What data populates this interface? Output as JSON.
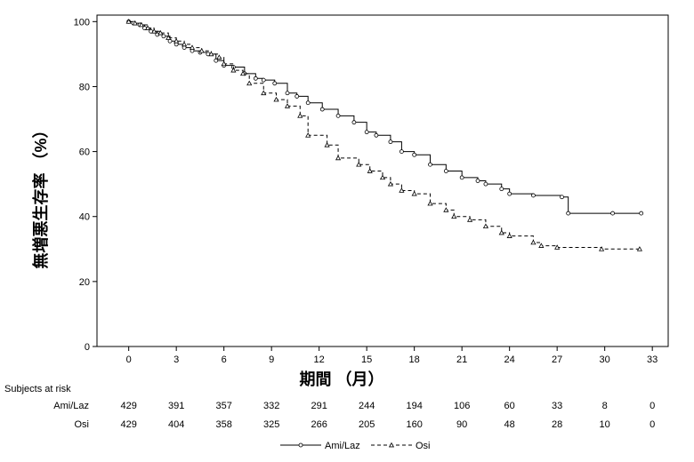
{
  "chart_data": {
    "type": "line",
    "xlabel": "期間 （月）",
    "ylabel": "無増悪生存率 （%）",
    "xlim": [
      -2,
      34
    ],
    "ylim": [
      0,
      102
    ],
    "x_ticks": [
      0,
      3,
      6,
      9,
      12,
      15,
      18,
      21,
      24,
      27,
      30,
      33
    ],
    "y_ticks": [
      0,
      20,
      40,
      60,
      80,
      100
    ],
    "grid": false,
    "legend_position": "bottom-center",
    "series": [
      {
        "name": "Ami/Laz",
        "line_style": "solid",
        "marker": "circle",
        "color": "#000000",
        "x": [
          0,
          0.3,
          0.7,
          1.0,
          1.4,
          1.8,
          2.2,
          2.6,
          3.0,
          3.5,
          4.0,
          4.5,
          5.0,
          5.5,
          6.0,
          6.6,
          7.3,
          8.0,
          8.5,
          9.2,
          10.0,
          10.6,
          11.3,
          12.2,
          13.2,
          14.2,
          15.0,
          15.6,
          16.5,
          17.2,
          18.0,
          19.0,
          20.0,
          21.0,
          22.0,
          22.5,
          23.5,
          24.0,
          25.5,
          27.3,
          27.7,
          30.5,
          32.3
        ],
        "y": [
          100,
          99.5,
          99,
          98,
          97,
          96,
          95.5,
          94,
          93,
          92,
          91,
          90.5,
          90,
          88,
          86.5,
          86,
          84,
          82.5,
          82,
          81,
          78,
          77,
          75,
          73,
          71,
          69,
          66,
          65,
          63,
          60,
          59,
          56,
          54,
          52,
          51,
          50,
          48.5,
          47,
          46.5,
          46,
          41,
          41,
          41
        ]
      },
      {
        "name": "Osi",
        "line_style": "dashed",
        "marker": "triangle",
        "color": "#000000",
        "x": [
          0,
          0.4,
          0.8,
          1.2,
          1.6,
          2.0,
          2.5,
          3.0,
          3.5,
          4.0,
          4.6,
          5.2,
          5.7,
          6.0,
          6.6,
          7.2,
          7.6,
          8.5,
          9.3,
          10.0,
          10.8,
          11.3,
          12.5,
          13.2,
          14.5,
          15.2,
          16.0,
          16.5,
          17.2,
          18.0,
          19.0,
          20.0,
          20.5,
          21.5,
          22.5,
          23.5,
          24.0,
          25.5,
          26.0,
          27.0,
          29.8,
          32.2
        ],
        "y": [
          100,
          99.5,
          99,
          98,
          97,
          96.5,
          95,
          94,
          93,
          92,
          91,
          90,
          89,
          87,
          85,
          84,
          81,
          78,
          76,
          74,
          71,
          65,
          62,
          58,
          56,
          54,
          52,
          50,
          48,
          47,
          44,
          42,
          40,
          39,
          37,
          35,
          34,
          32,
          31,
          30.5,
          30,
          30
        ]
      }
    ],
    "risk_table": {
      "title": "Subjects at risk",
      "times": [
        0,
        3,
        6,
        9,
        12,
        15,
        18,
        21,
        24,
        27,
        30,
        33
      ],
      "rows": [
        {
          "label": "Ami/Laz",
          "values": [
            "429",
            "391",
            "357",
            "332",
            "291",
            "244",
            "194",
            "106",
            "60",
            "33",
            "8",
            "0"
          ]
        },
        {
          "label": "Osi",
          "values": [
            "429",
            "404",
            "358",
            "325",
            "266",
            "205",
            "160",
            "90",
            "48",
            "28",
            "10",
            "0"
          ]
        }
      ]
    }
  }
}
